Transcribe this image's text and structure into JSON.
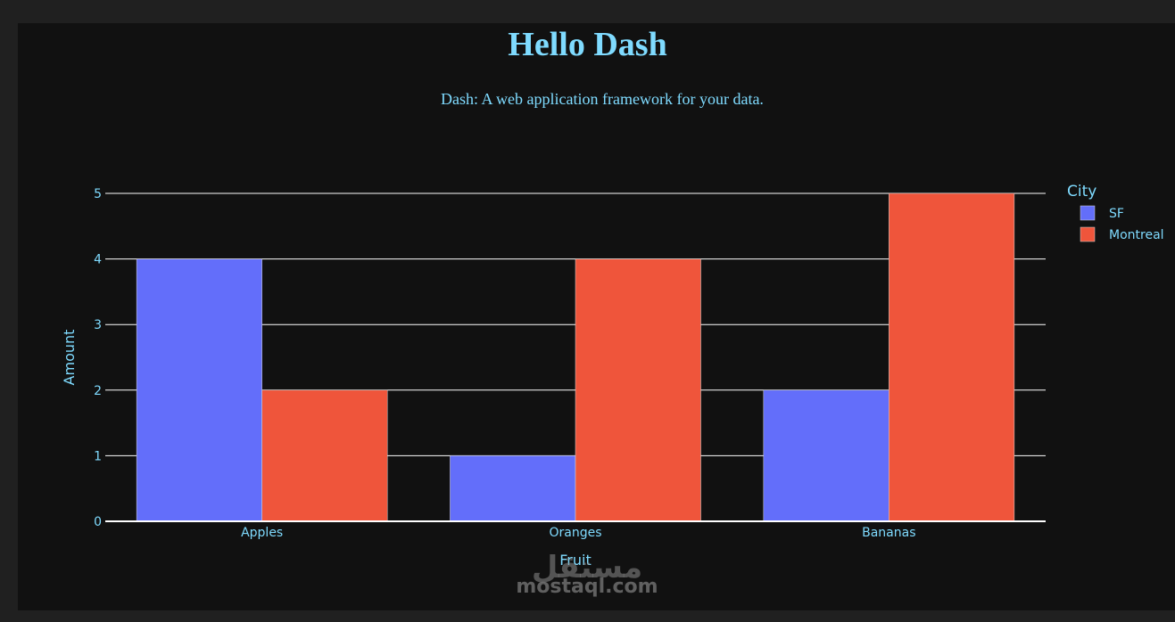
{
  "title": "Hello Dash",
  "subtitle": "Dash: A web application framework for your data.",
  "colors": {
    "page_background": "#111111",
    "text": "#7FDBFF",
    "grid": "#FFFFFF",
    "SF": "#636EFA",
    "Montreal": "#EF553B"
  },
  "chart_data": {
    "type": "bar",
    "barmode": "group",
    "categories": [
      "Apples",
      "Oranges",
      "Bananas"
    ],
    "series": [
      {
        "name": "SF",
        "values": [
          4,
          1,
          2
        ]
      },
      {
        "name": "Montreal",
        "values": [
          2,
          4,
          5
        ]
      }
    ],
    "xlabel": "Fruit",
    "ylabel": "Amount",
    "ylim": [
      0,
      5
    ],
    "yticks": [
      0,
      1,
      2,
      3,
      4,
      5
    ],
    "legend_title": "City",
    "legend_position": "right",
    "grid": true
  },
  "watermark": {
    "arabic": "مستقل",
    "latin": "mostaql.com"
  }
}
